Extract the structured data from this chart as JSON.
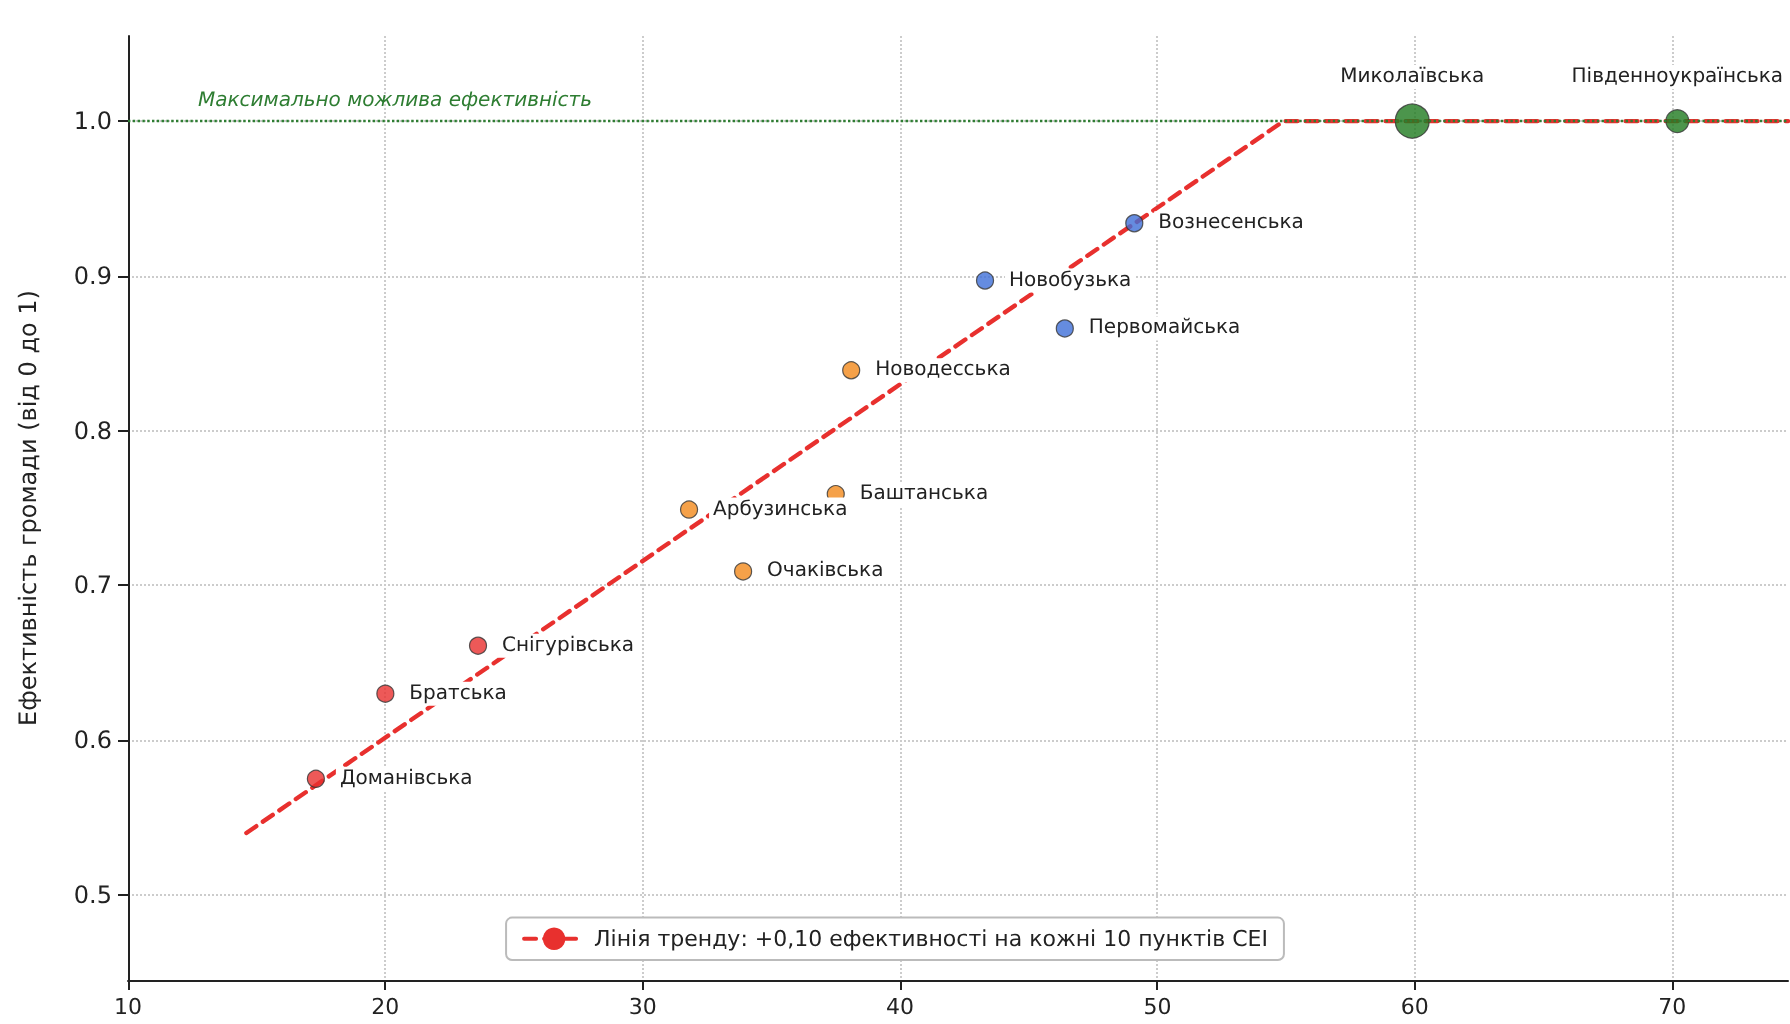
{
  "chart_data": {
    "type": "bubble",
    "ylabel": "Ефективність громади (від 0 до 1)",
    "xlim": [
      10,
      74.5
    ],
    "xticks": [
      10,
      20,
      30,
      40,
      50,
      60,
      70
    ],
    "ylim": [
      0.445,
      1.055
    ],
    "yticks": [
      0.5,
      0.6,
      0.7,
      0.8,
      0.9,
      {
        "value": 1.0,
        "label": "1.0"
      }
    ],
    "grid": true,
    "legend": "bottom",
    "marker": "circle",
    "series": [
      {
        "color": "#e8302e",
        "x": [
          17.3,
          20.0,
          23.6
        ],
        "values": [
          0.575,
          0.63,
          0.661
        ],
        "sizes": [
          0.25,
          0.25,
          0.25
        ]
      },
      {
        "color": "#f28a1c",
        "x": [
          31.8,
          33.9,
          37.5,
          38.1
        ],
        "values": [
          0.749,
          0.709,
          0.759,
          0.839
        ],
        "sizes": [
          0.25,
          0.25,
          0.25,
          0.25
        ]
      },
      {
        "color": "#3f6fd8",
        "x": [
          43.3,
          46.4,
          49.1
        ],
        "values": [
          0.897,
          0.866,
          0.934
        ],
        "sizes": [
          0.25,
          0.25,
          0.25
        ]
      },
      {
        "color": "#1f7a1f",
        "x": [
          59.9,
          70.2
        ],
        "values": [
          1.0,
          1.0
        ],
        "sizes": [
          1,
          0.45
        ]
      },
      {
        "type": "line",
        "name": "Лінія тренду: +0,10 ефективності на кожні 10 пунктів CEI",
        "color": "#e8302e",
        "line_style": "dashed",
        "marker": "none",
        "x": [
          14.6,
          54.9,
          74.5
        ],
        "values": [
          0.54,
          1.0,
          1.0
        ]
      }
    ],
    "ref_lines": [
      {
        "axis": "y",
        "value": 1.0,
        "label": "Максимально можлива ефективність",
        "color": "#2e7d32",
        "line_style": "dotted"
      }
    ],
    "annotations": [
      {
        "text": "Доманівська",
        "x": 17.3,
        "y": 0.575
      },
      {
        "text": "Братська",
        "x": 20.0,
        "y": 0.63
      },
      {
        "text": "Снігурівська",
        "x": 23.6,
        "y": 0.661
      },
      {
        "text": "Арбузинська",
        "x": 31.8,
        "y": 0.749
      },
      {
        "text": "Очаківська",
        "x": 33.9,
        "y": 0.709
      },
      {
        "text": "Баштанська",
        "x": 37.5,
        "y": 0.759
      },
      {
        "text": "Новодесська",
        "x": 38.1,
        "y": 0.839
      },
      {
        "text": "Новобузька",
        "x": 43.3,
        "y": 0.897
      },
      {
        "text": "Первомайська",
        "x": 46.4,
        "y": 0.866
      },
      {
        "text": "Вознесенська",
        "x": 49.1,
        "y": 0.934
      },
      {
        "text": "Миколаївська",
        "x": 59.9,
        "y": 1.0
      },
      {
        "text": "Південноукраїнська",
        "x": 70.2,
        "y": 1.0
      }
    ]
  }
}
